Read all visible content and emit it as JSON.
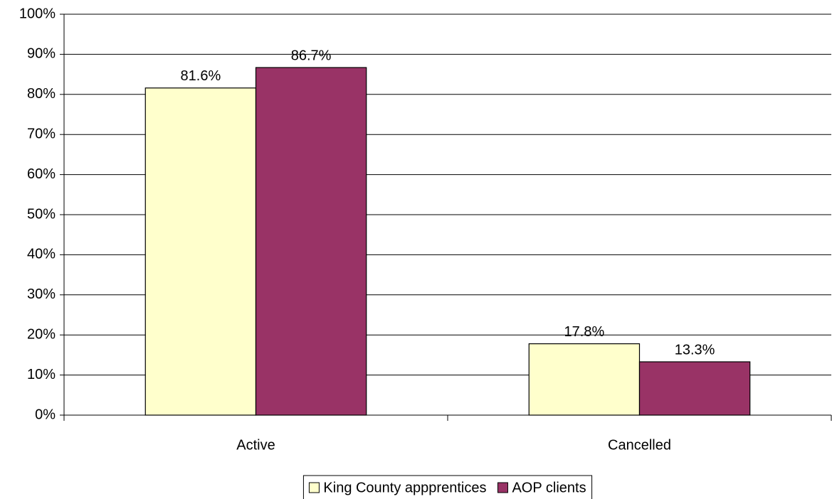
{
  "chart_data": {
    "type": "bar",
    "categories": [
      "Active",
      "Cancelled"
    ],
    "series": [
      {
        "name": "King County appprentices",
        "color": "#ffffcc",
        "values": [
          81.6,
          17.8
        ],
        "value_labels": [
          "81.6%",
          "17.8%"
        ]
      },
      {
        "name": "AOP clients",
        "color": "#993366",
        "values": [
          86.7,
          13.3
        ],
        "value_labels": [
          "86.7%",
          "13.3%"
        ]
      }
    ],
    "ylim": [
      0,
      100
    ],
    "yticks": [
      {
        "value": 0,
        "label": "0%"
      },
      {
        "value": 10,
        "label": "10%"
      },
      {
        "value": 20,
        "label": "20%"
      },
      {
        "value": 30,
        "label": "30%"
      },
      {
        "value": 40,
        "label": "40%"
      },
      {
        "value": 50,
        "label": "50%"
      },
      {
        "value": 60,
        "label": "60%"
      },
      {
        "value": 70,
        "label": "70%"
      },
      {
        "value": 80,
        "label": "80%"
      },
      {
        "value": 90,
        "label": "90%"
      },
      {
        "value": 100,
        "label": "100%"
      }
    ],
    "grid": true,
    "legend": "bottom"
  }
}
